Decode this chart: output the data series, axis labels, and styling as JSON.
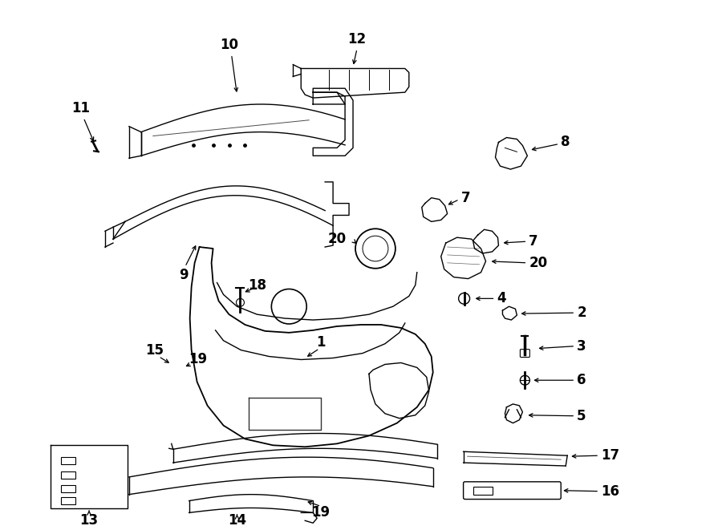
{
  "bg_color": "#ffffff",
  "line_color": "#000000",
  "fig_width": 9.0,
  "fig_height": 6.61,
  "lw": 1.0,
  "fs": 12
}
